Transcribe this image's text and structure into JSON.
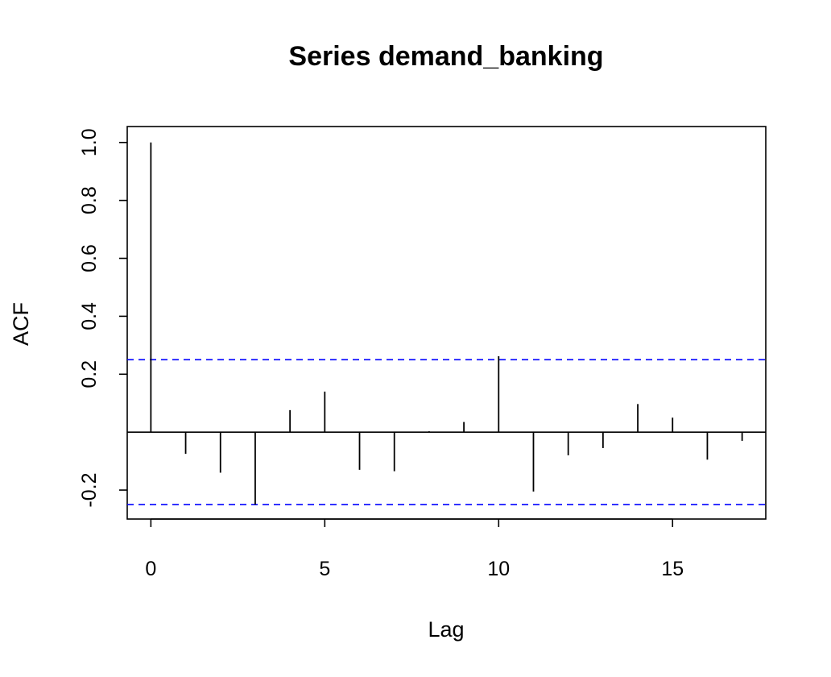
{
  "chart_data": {
    "type": "bar",
    "title": "Series  demand_banking",
    "xlabel": "Lag",
    "ylabel": "ACF",
    "xlim": [
      -0.68,
      17.68
    ],
    "ylim": [
      -0.3,
      1.055
    ],
    "x_ticks": [
      0,
      5,
      10,
      15
    ],
    "x_tick_labels": [
      "0",
      "5",
      "10",
      "15"
    ],
    "y_ticks": [
      -0.2,
      0.2,
      0.4,
      0.6,
      0.8,
      1.0
    ],
    "y_tick_labels": [
      "-0.2",
      "0.2",
      "0.4",
      "0.6",
      "0.8",
      "1.0"
    ],
    "grid": false,
    "legend": "none",
    "series": [
      {
        "x": [
          0,
          1,
          2,
          3,
          4,
          5,
          6,
          7,
          8,
          9,
          10,
          11,
          12,
          13,
          14,
          15,
          16,
          17
        ],
        "values": [
          1.0,
          -0.075,
          -0.14,
          -0.25,
          0.076,
          0.14,
          -0.13,
          -0.135,
          0.003,
          0.035,
          0.262,
          -0.205,
          -0.08,
          -0.055,
          0.097,
          0.05,
          -0.095,
          -0.03
        ]
      }
    ],
    "confidence_bounds": [
      0.25,
      -0.25
    ],
    "colors": {
      "bars": "#000000",
      "bounds": "#0000ff",
      "zero_line": "#000000"
    }
  }
}
